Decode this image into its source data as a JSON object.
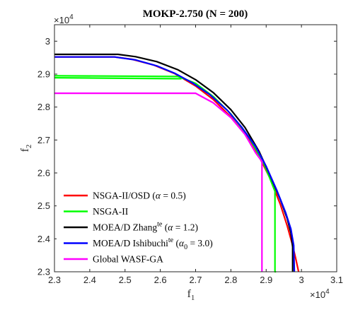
{
  "chart_data": {
    "type": "line",
    "title": "MOKP-2.750 (N = 200)",
    "xlabel": "f",
    "xlabel_sub": "1",
    "ylabel": "f",
    "ylabel_sub": "2",
    "x_multiplier": "×10",
    "x_multiplier_exp": "4",
    "y_multiplier": "×10",
    "y_multiplier_exp": "4",
    "xlim": [
      23000,
      31000
    ],
    "ylim": [
      23000,
      30500
    ],
    "xticks": [
      23000,
      24000,
      25000,
      26000,
      27000,
      28000,
      29000,
      30000,
      31000
    ],
    "xtick_labels": [
      "2.3",
      "2.4",
      "2.5",
      "2.6",
      "2.7",
      "2.8",
      "2.9",
      "3",
      "3.1"
    ],
    "yticks": [
      23000,
      24000,
      25000,
      26000,
      27000,
      28000,
      29000,
      30000
    ],
    "ytick_labels": [
      "2.3",
      "2.4",
      "2.5",
      "2.6",
      "2.7",
      "2.8",
      "2.9",
      "3"
    ],
    "grid": false,
    "legend_position": "bottom-left",
    "series": [
      {
        "name": "NSGA-II/OSD (α = 0.5)",
        "legend": {
          "pre": "NSGA-II/OSD (",
          "sym": "α",
          "post": " = 0.5)"
        },
        "color": "#ff0000",
        "x": [
          23000,
          24700,
          25200,
          25800,
          26400,
          27000,
          27500,
          28000,
          28400,
          28800,
          29100,
          29400,
          29600,
          29750,
          29850,
          29900,
          29920
        ],
        "y": [
          29520,
          29520,
          29450,
          29280,
          29020,
          28640,
          28230,
          27700,
          27180,
          26500,
          25860,
          25050,
          24380,
          23800,
          23350,
          23100,
          23000
        ]
      },
      {
        "name": "NSGA-II",
        "legend": {
          "pre": "NSGA-II",
          "sym": "",
          "post": ""
        },
        "color": "#00ff00",
        "x": [
          23000,
          26500,
          26600,
          26700,
          27000,
          27500,
          28000,
          28500,
          28900,
          29100,
          29250,
          29250,
          29280
        ],
        "y": [
          28950,
          28930,
          28890,
          28850,
          28720,
          28320,
          27790,
          27100,
          26360,
          25850,
          25440,
          23000,
          23000
        ],
        "x2": [
          23000,
          26600
        ],
        "y2": [
          28890,
          28860
        ]
      },
      {
        "name": "MOEA/D Zhang te (α = 1.2)",
        "legend": {
          "pre": "MOEA/D Zhang",
          "sup": "te",
          "mid": " (",
          "sym": "α",
          "post": " = 1.2)"
        },
        "color": "#000000",
        "x": [
          23000,
          24800,
          25300,
          25900,
          26500,
          27000,
          27500,
          28000,
          28400,
          28800,
          29100,
          29400,
          29600,
          29700,
          29750,
          29750
        ],
        "y": [
          29600,
          29600,
          29530,
          29380,
          29130,
          28830,
          28440,
          27920,
          27380,
          26650,
          25950,
          25200,
          24600,
          24180,
          23750,
          23000
        ]
      },
      {
        "name": "MOEA/D Ishibuchi te (α0 = 3.0)",
        "legend": {
          "pre": "MOEA/D Ishibuchi",
          "sup": "te",
          "mid": " (",
          "sym": "α",
          "sub": "0",
          "post": " = 3.0)"
        },
        "color": "#0000ff",
        "x": [
          23000,
          24700,
          25300,
          25900,
          26400,
          26900,
          27400,
          27900,
          28300,
          28700,
          29000,
          29300,
          29550,
          29700,
          29780,
          29800
        ],
        "y": [
          29520,
          29520,
          29430,
          29250,
          29030,
          28740,
          28380,
          27900,
          27400,
          26800,
          26200,
          25480,
          24800,
          24300,
          23800,
          23000
        ]
      },
      {
        "name": "Global WASF-GA",
        "legend": {
          "pre": "Global WASF-GA",
          "sym": "",
          "post": ""
        },
        "color": "#ff00ff",
        "x": [
          23000,
          27000,
          27500,
          28000,
          28400,
          28700,
          28880,
          28880
        ],
        "y": [
          28420,
          28420,
          28130,
          27680,
          27170,
          26610,
          26350,
          23000
        ]
      }
    ]
  }
}
